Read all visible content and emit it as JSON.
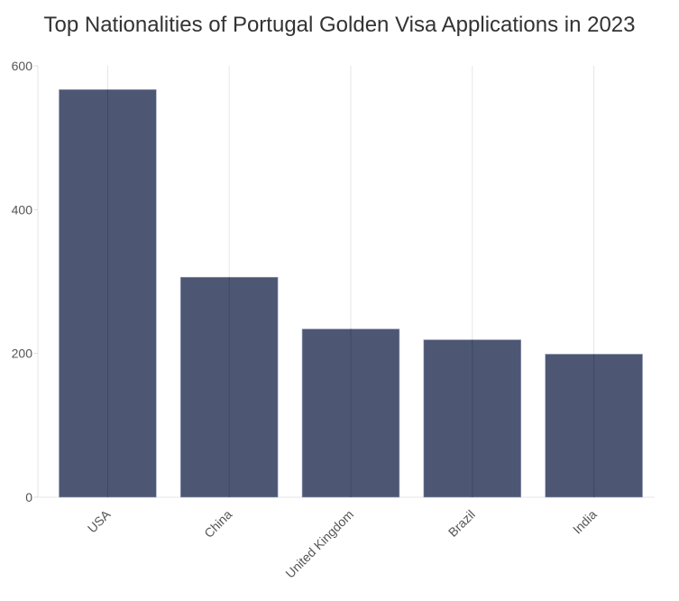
{
  "chart_data": {
    "type": "bar",
    "title": "Top Nationalities of Portugal Golden Visa Applications in 2023",
    "categories": [
      "USA",
      "China",
      "United Kingdom",
      "Brazil",
      "India"
    ],
    "values": [
      567,
      306,
      234,
      219,
      199
    ],
    "xlabel": "",
    "ylabel": "",
    "ylim": [
      0,
      600
    ],
    "yticks": [
      "0",
      "200",
      "400",
      "600"
    ],
    "grid": "vertical",
    "bar_color": "#475270"
  }
}
